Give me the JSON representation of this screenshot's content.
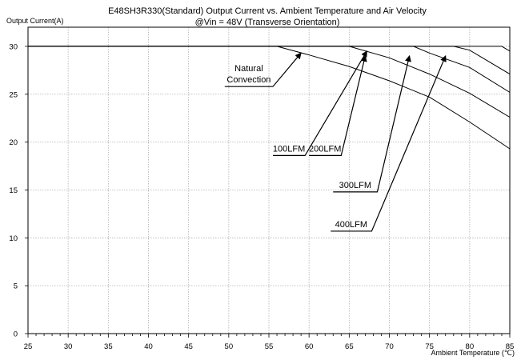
{
  "chart_data": {
    "type": "line",
    "title": "E48SH3R330(Standard)  Output Current vs. Ambient Temperature and Air Velocity",
    "subtitle": "@Vin = 48V (Transverse Orientation)",
    "xlabel": "Ambient Temperature (℃)",
    "ylabel": "Output Current(A)",
    "xlim": [
      25,
      85
    ],
    "ylim": [
      0,
      32
    ],
    "xticks": [
      "25",
      "30",
      "35",
      "40",
      "45",
      "50",
      "55",
      "60",
      "65",
      "70",
      "75",
      "80",
      "85"
    ],
    "yticks": [
      "0",
      "5",
      "10",
      "15",
      "20",
      "25",
      "30"
    ],
    "grid": true,
    "legend": "none",
    "series": [
      {
        "name": "Natural Convection",
        "x": [
          25,
          56,
          60,
          65,
          70,
          75,
          80,
          85
        ],
        "y": [
          30,
          30,
          29.1,
          27.9,
          26.4,
          24.7,
          22.1,
          19.3
        ]
      },
      {
        "name": "100LFM",
        "x": [
          25,
          65,
          70,
          75,
          80,
          85
        ],
        "y": [
          30,
          30,
          28.8,
          27.1,
          25.1,
          22.6
        ]
      },
      {
        "name": "200LFM",
        "x": [
          25,
          73,
          75,
          80,
          85
        ],
        "y": [
          30,
          30,
          29.3,
          27.8,
          25.2
        ]
      },
      {
        "name": "300LFM",
        "x": [
          25,
          78,
          80,
          85
        ],
        "y": [
          30,
          30,
          29.6,
          27.1
        ]
      },
      {
        "name": "400LFM",
        "x": [
          25,
          84,
          85
        ],
        "y": [
          30,
          30,
          29.5
        ]
      }
    ],
    "annotations": [
      {
        "lines": [
          "Natural",
          "Convection"
        ],
        "line_from": [
          49.5,
          25.8
        ],
        "elbow": [
          55.5,
          25.8
        ],
        "arrow_to": [
          59.0,
          29.3
        ]
      },
      {
        "lines": [
          "100LFM"
        ],
        "line_from": [
          55.5,
          18.6
        ],
        "elbow": [
          59.5,
          18.6
        ],
        "arrow_to": [
          67.2,
          29.5
        ]
      },
      {
        "lines": [
          "200LFM"
        ],
        "line_from": [
          60.0,
          18.6
        ],
        "elbow": [
          64.0,
          18.6
        ],
        "arrow_to": [
          67.0,
          29.0
        ]
      },
      {
        "lines": [
          "300LFM"
        ],
        "line_from": [
          63.0,
          14.8
        ],
        "elbow": [
          68.5,
          14.8
        ],
        "arrow_to": [
          72.5,
          29.0
        ]
      },
      {
        "lines": [
          "400LFM"
        ],
        "line_from": [
          62.7,
          10.7
        ],
        "elbow": [
          67.8,
          10.7
        ],
        "arrow_to": [
          77.0,
          29.0
        ]
      }
    ]
  }
}
